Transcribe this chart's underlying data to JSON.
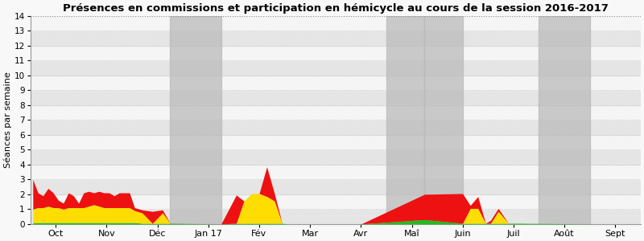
{
  "title": "Présences en commissions et participation en hémicycle au cours de la session 2016-2017",
  "ylabel": "Séances par semaine",
  "ylim": [
    0,
    14
  ],
  "yticks": [
    0,
    1,
    2,
    3,
    4,
    5,
    6,
    7,
    8,
    9,
    10,
    11,
    12,
    13,
    14
  ],
  "bg_light": "#f5f5f5",
  "bg_dark": "#e5e5e5",
  "gray_band_color": "#bbbbbb",
  "color_green": "#22bb22",
  "color_yellow": "#ffdd00",
  "color_red": "#ee1111",
  "x_labels": [
    "Oct",
    "Nov",
    "Déc",
    "Jan 17",
    "Fév",
    "Mar",
    "Avr",
    "Maî",
    "Juin",
    "Juil",
    "Août",
    "Sept"
  ],
  "x_tick_pos": [
    0.5,
    1.5,
    2.5,
    3.5,
    4.5,
    5.5,
    6.5,
    7.5,
    8.5,
    9.5,
    10.5,
    11.5
  ],
  "gray_bands": [
    [
      2.75,
      3.75
    ],
    [
      7.0,
      7.75
    ],
    [
      7.75,
      8.5
    ],
    [
      10.0,
      11.0
    ]
  ],
  "x": [
    0.05,
    0.15,
    0.25,
    0.35,
    0.45,
    0.55,
    0.65,
    0.75,
    0.85,
    0.95,
    1.05,
    1.15,
    1.25,
    1.35,
    1.45,
    1.55,
    1.65,
    1.75,
    1.85,
    1.95,
    2.05,
    2.2,
    2.4,
    2.6,
    2.75,
    3.75,
    4.05,
    4.2,
    4.35,
    4.5,
    4.65,
    4.8,
    4.95,
    5.05,
    5.2,
    6.05,
    6.5,
    7.75,
    8.5,
    8.65,
    8.8,
    8.95,
    9.05,
    9.2,
    9.4,
    9.6,
    11.05,
    11.95
  ],
  "green": [
    0.1,
    0.1,
    0.1,
    0.1,
    0.1,
    0.1,
    0.1,
    0.1,
    0.1,
    0.1,
    0.1,
    0.1,
    0.1,
    0.1,
    0.1,
    0.1,
    0.1,
    0.1,
    0.1,
    0.1,
    0.1,
    0.05,
    0.05,
    0.05,
    0.05,
    0.0,
    0.05,
    0.05,
    0.05,
    0.05,
    0.05,
    0.05,
    0.05,
    0.0,
    0.0,
    0.0,
    0.0,
    0.3,
    0.05,
    0.05,
    0.05,
    0.05,
    0.05,
    0.05,
    0.05,
    0.05,
    0.0,
    0.0
  ],
  "yellow": [
    0.9,
    1.0,
    1.0,
    1.1,
    1.0,
    1.0,
    0.9,
    1.0,
    1.0,
    1.0,
    1.0,
    1.1,
    1.2,
    1.1,
    1.0,
    1.0,
    1.0,
    1.0,
    1.0,
    1.0,
    0.8,
    0.7,
    0.0,
    0.7,
    0.0,
    0.0,
    0.0,
    1.5,
    2.0,
    2.0,
    1.8,
    1.5,
    0.0,
    0.0,
    0.0,
    0.0,
    0.0,
    0.0,
    0.0,
    1.0,
    1.0,
    0.0,
    0.0,
    0.8,
    0.0,
    0.0,
    0.0,
    0.0
  ],
  "red": [
    2.0,
    1.0,
    0.8,
    1.2,
    1.0,
    0.5,
    0.4,
    1.0,
    0.8,
    0.3,
    1.0,
    1.0,
    0.8,
    1.0,
    1.0,
    1.0,
    0.8,
    1.0,
    1.0,
    1.0,
    0.2,
    0.2,
    0.8,
    0.2,
    0.0,
    0.0,
    1.9,
    0.0,
    0.0,
    0.0,
    2.0,
    0.5,
    0.0,
    0.0,
    0.0,
    0.0,
    0.0,
    1.7,
    2.0,
    0.2,
    0.8,
    0.0,
    0.2,
    0.2,
    0.0,
    0.0,
    0.0,
    0.0
  ]
}
